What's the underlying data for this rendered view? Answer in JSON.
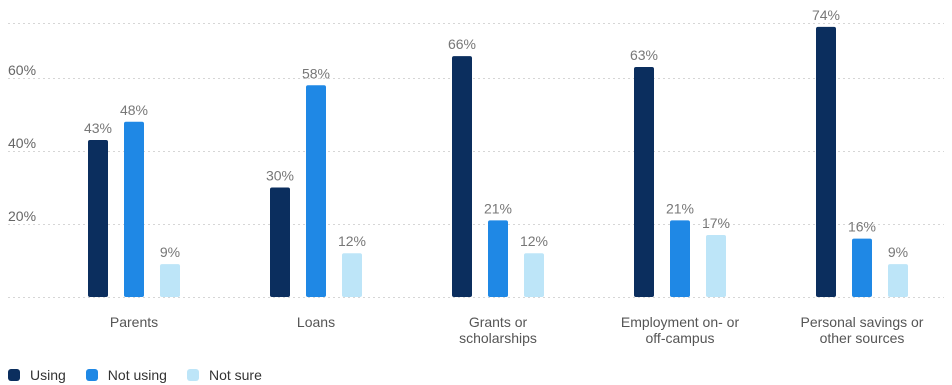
{
  "chart_data": {
    "type": "bar",
    "categories": [
      "Parents",
      "Loans",
      "Grants or scholarships",
      "Employment on- or off-campus",
      "Personal savings or other sources"
    ],
    "series": [
      {
        "name": "Using",
        "color": "#0b2e5e",
        "values": [
          43,
          30,
          66,
          63,
          74
        ]
      },
      {
        "name": "Not using",
        "color": "#1f88e5",
        "values": [
          48,
          58,
          21,
          21,
          16
        ]
      },
      {
        "name": "Not sure",
        "color": "#bde5f8",
        "values": [
          9,
          12,
          12,
          17,
          9
        ]
      }
    ],
    "data_labels": [
      [
        "43%",
        "30%",
        "66%",
        "63%",
        "74%"
      ],
      [
        "48%",
        "58%",
        "21%",
        "21%",
        "16%"
      ],
      [
        "9%",
        "12%",
        "12%",
        "17%",
        "9%"
      ]
    ],
    "y_ticks": [
      {
        "value": 20,
        "label": "20%"
      },
      {
        "value": 40,
        "label": "40%"
      },
      {
        "value": 60,
        "label": "60%"
      }
    ],
    "ylim": [
      0,
      80
    ],
    "grid": true,
    "legend_position": "bottom-left"
  }
}
